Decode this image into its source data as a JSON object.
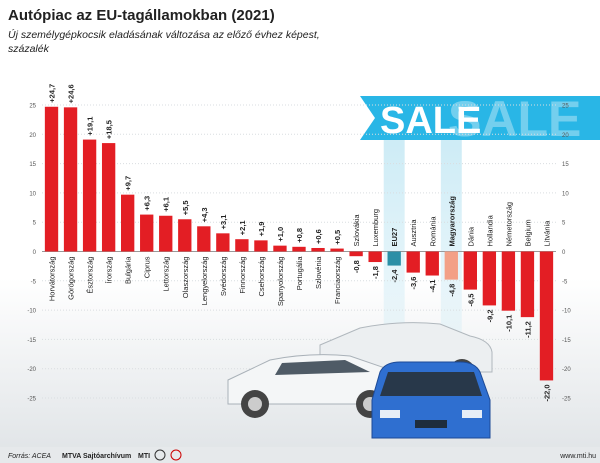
{
  "chart_data": {
    "type": "bar",
    "title": "Autópiac az EU-tagállamokban (2021)",
    "subtitle": [
      "Új személygépkocsik eladásának változása az előző évhez képest,",
      "százalék"
    ],
    "categories": [
      "Horvátország",
      "Görögország",
      "Észtország",
      "Írország",
      "Bulgária",
      "Ciprus",
      "Lettország",
      "Olaszország",
      "Lengyelország",
      "Svédország",
      "Finnország",
      "Csehország",
      "Spanyolország",
      "Portugália",
      "Szlovénia",
      "Franciaország",
      "Szlovákia",
      "Luxemburg",
      "EU27",
      "Ausztria",
      "Románia",
      "Magyarország",
      "Dánia",
      "Hollandia",
      "Németország",
      "Belgium",
      "Litvánia"
    ],
    "values": [
      24.7,
      24.6,
      19.1,
      18.5,
      9.7,
      6.3,
      6.1,
      5.5,
      4.3,
      3.1,
      2.1,
      1.9,
      1.0,
      0.8,
      0.6,
      0.5,
      -0.8,
      -1.8,
      -2.4,
      -3.6,
      -4.1,
      -4.8,
      -6.5,
      -9.2,
      -10.1,
      -11.2,
      -22.0
    ],
    "value_labels": [
      "+24,7",
      "+24,6",
      "+19,1",
      "+18,5",
      "+9,7",
      "+6,3",
      "+6,1",
      "+5,5",
      "+4,3",
      "+3,1",
      "+2,1",
      "+1,9",
      "+1,0",
      "+0,8",
      "+0,6",
      "+0,5",
      "-0,8",
      "-1,8",
      "-2,4",
      "-3,6",
      "-4,1",
      "-4,8",
      "-6,5",
      "-9,2",
      "-10,1",
      "-11,2",
      "-22,0"
    ],
    "colors": [
      "#e31e24",
      "#e31e24",
      "#e31e24",
      "#e31e24",
      "#e31e24",
      "#e31e24",
      "#e31e24",
      "#e31e24",
      "#e31e24",
      "#e31e24",
      "#e31e24",
      "#e31e24",
      "#e31e24",
      "#e31e24",
      "#e31e24",
      "#e31e24",
      "#e31e24",
      "#e31e24",
      "#2b8fa6",
      "#e31e24",
      "#e31e24",
      "#f3a086",
      "#e31e24",
      "#e31e24",
      "#e31e24",
      "#e31e24",
      "#e31e24"
    ],
    "highlight": [
      "EU27",
      "Magyarország"
    ],
    "ylim": [
      -25,
      25
    ],
    "yticks": [
      25,
      20,
      15,
      10,
      5,
      0,
      -5,
      -10,
      -15,
      -20,
      -25
    ],
    "sale_sign": "SALE",
    "source": "Forrás: ACEA",
    "archive": "MTVA Sajtóarchívum",
    "agency": "MTI",
    "website": "www.mti.hu"
  }
}
